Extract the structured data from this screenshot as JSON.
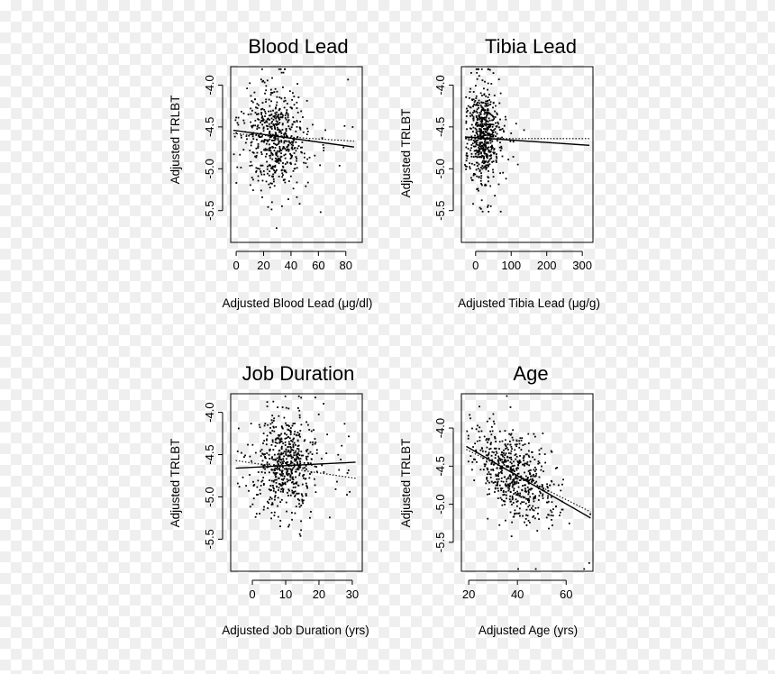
{
  "chart_data": [
    {
      "id": "blood",
      "type": "scatter",
      "title": "Blood Lead",
      "xlabel": "Adjusted Blood Lead (μg/dl)",
      "ylabel": "Adjusted TRLBT",
      "xlim": [
        -4,
        92
      ],
      "ylim": [
        -5.88,
        -3.78
      ],
      "xticks": [
        0,
        20,
        40,
        60,
        80
      ],
      "yticks": [
        -4.0,
        -4.5,
        -5.0,
        -5.5
      ],
      "xtick_labels": [
        "0",
        "20",
        "40",
        "60",
        "80"
      ],
      "ytick_labels": [
        "-4.0",
        "-4.5",
        "-5.0",
        "-5.5"
      ],
      "point_cloud": {
        "n": 600,
        "x_center": 28,
        "x_sd": 11,
        "x_min": -2,
        "x_max": 86,
        "y_center": -4.62,
        "y_sd": 0.28,
        "slope": -0.0024,
        "seed": 11
      },
      "fit_solid": [
        [
          -2,
          -4.54
        ],
        [
          86,
          -4.74
        ]
      ],
      "fit_dotted": [
        [
          -2,
          -4.58
        ],
        [
          86,
          -4.67
        ]
      ]
    },
    {
      "id": "tibia",
      "type": "scatter",
      "title": "Tibia Lead",
      "xlabel": "Adjusted Tibia Lead (μg/g)",
      "ylabel": "Adjusted TRLBT",
      "xlim": [
        -40,
        330
      ],
      "ylim": [
        -5.88,
        -3.78
      ],
      "xticks": [
        0,
        100,
        200,
        300
      ],
      "yticks": [
        -4.0,
        -4.5,
        -5.0,
        -5.5
      ],
      "xtick_labels": [
        "0",
        "100",
        "200",
        "300"
      ],
      "ytick_labels": [
        "-4.0",
        "-4.5",
        "-5.0",
        "-5.5"
      ],
      "point_cloud": {
        "n": 600,
        "x_center": 22,
        "x_sd": 22,
        "x_min": -30,
        "x_max": 320,
        "y_center": -4.62,
        "y_sd": 0.28,
        "slope": -0.0003,
        "seed": 23
      },
      "fit_solid": [
        [
          -30,
          -4.62
        ],
        [
          320,
          -4.72
        ]
      ],
      "fit_dotted": [
        [
          -30,
          -4.64
        ],
        [
          320,
          -4.64
        ]
      ]
    },
    {
      "id": "job",
      "type": "scatter",
      "title": "Job Duration",
      "xlabel": "Adjusted Job Duration (yrs)",
      "ylabel": "Adjusted TRLBT",
      "xlim": [
        -6.5,
        33
      ],
      "ylim": [
        -5.88,
        -3.78
      ],
      "xticks": [
        0,
        10,
        20,
        30
      ],
      "yticks": [
        -4.0,
        -4.5,
        -5.0,
        -5.5
      ],
      "xtick_labels": [
        "0",
        "10",
        "20",
        "30"
      ],
      "ytick_labels": [
        "-4.0",
        "-4.5",
        "-5.0",
        "-5.5"
      ],
      "point_cloud": {
        "n": 600,
        "x_center": 10,
        "x_sd": 5,
        "x_min": -5,
        "x_max": 31,
        "y_center": -4.62,
        "y_sd": 0.28,
        "slope": 0.0,
        "seed": 37
      },
      "fit_solid": [
        [
          -5,
          -4.66
        ],
        [
          31,
          -4.59
        ]
      ],
      "fit_dotted": [
        [
          -5,
          -4.57
        ],
        [
          31,
          -4.78
        ]
      ]
    },
    {
      "id": "age",
      "type": "scatter",
      "title": "Age",
      "xlabel": "Adjusted Age (yrs)",
      "ylabel": "Adjusted TRLBT",
      "xlim": [
        17,
        71
      ],
      "ylim": [
        -5.88,
        -3.55
      ],
      "xticks": [
        20,
        40,
        60
      ],
      "yticks": [
        -4.0,
        -4.5,
        -5.0,
        -5.5
      ],
      "xtick_labels": [
        "20",
        "40",
        "60"
      ],
      "ytick_labels": [
        "-4.0",
        "-4.5",
        "-5.0",
        "-5.5"
      ],
      "point_cloud": {
        "n": 600,
        "x_center": 39,
        "x_sd": 8,
        "x_min": 19,
        "x_max": 70,
        "y_center": -4.62,
        "y_sd": 0.26,
        "slope": -0.018,
        "seed": 53
      },
      "fit_solid": [
        [
          19,
          -4.24
        ],
        [
          70,
          -5.18
        ]
      ],
      "fit_dotted": [
        [
          19,
          -4.28
        ],
        [
          70,
          -5.1
        ]
      ]
    }
  ]
}
